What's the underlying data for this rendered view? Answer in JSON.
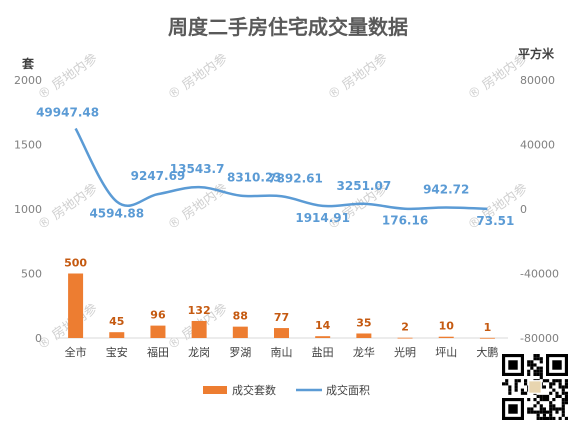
{
  "chart_data": {
    "type": "bar+line",
    "title": "周度二手房住宅成交量数据",
    "categories": [
      "全市",
      "宝安",
      "福田",
      "龙岗",
      "罗湖",
      "南山",
      "盐田",
      "龙华",
      "光明",
      "坪山",
      "大鹏"
    ],
    "series": [
      {
        "name": "成交套数",
        "type": "bar",
        "axis": "left",
        "color": "#ed7d31",
        "values": [
          500,
          45,
          96,
          132,
          88,
          77,
          14,
          35,
          2,
          10,
          1
        ],
        "labels": [
          "500",
          "45",
          "96",
          "132",
          "88",
          "77",
          "14",
          "35",
          "2",
          "10",
          "1"
        ]
      },
      {
        "name": "成交面积",
        "type": "line",
        "axis": "right",
        "color": "#5b9bd5",
        "values": [
          49947.48,
          4594.88,
          9247.69,
          13543.7,
          8310.23,
          7892.61,
          1914.91,
          3251.07,
          176.16,
          942.72,
          73.51
        ],
        "labels": [
          "49947.48",
          "4594.88",
          "9247.69",
          "13543.7",
          "8310.23",
          "7892.61",
          "1914.91",
          "3251.07",
          "176.16",
          "942.72",
          "73.51"
        ]
      }
    ],
    "y_left": {
      "unit": "套",
      "ylim": [
        0,
        2000
      ],
      "ticks": [
        "0",
        "500",
        "1000",
        "1500",
        "2000"
      ]
    },
    "y_right": {
      "unit": "平方米",
      "ylim": [
        -80000,
        80000
      ],
      "ticks": [
        "-80000",
        "-40000",
        "0",
        "40000",
        "80000"
      ]
    },
    "legend": {
      "placement": "bottom",
      "entries": [
        "成交套数",
        "成交面积"
      ]
    },
    "grid": false,
    "watermark": "房地内参"
  }
}
